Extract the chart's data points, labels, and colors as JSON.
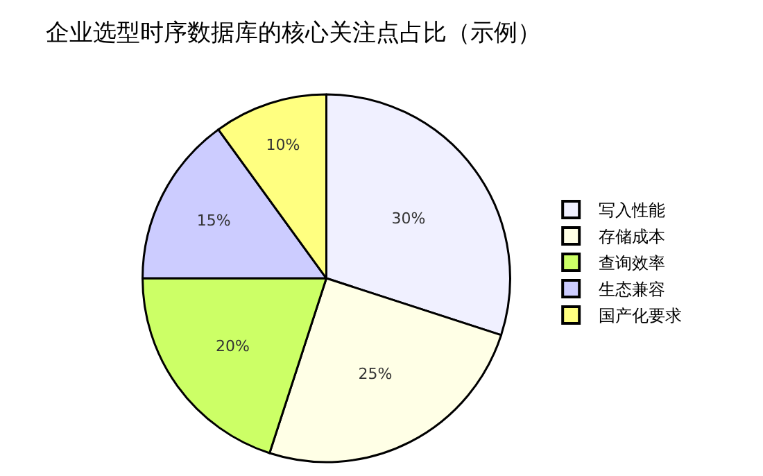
{
  "chart_data": {
    "type": "pie",
    "title": "企业选型时序数据库的核心关注点占比（示例）",
    "categories": [
      "写入性能",
      "存储成本",
      "查询效率",
      "生态兼容",
      "国产化要求"
    ],
    "values": [
      30,
      25,
      20,
      15,
      10
    ],
    "value_labels": [
      "30%",
      "25%",
      "20%",
      "15%",
      "10%"
    ],
    "colors": [
      "#f0f0ff",
      "#ffffe6",
      "#ccff66",
      "#ccccff",
      "#ffff80"
    ],
    "legend": "right"
  }
}
